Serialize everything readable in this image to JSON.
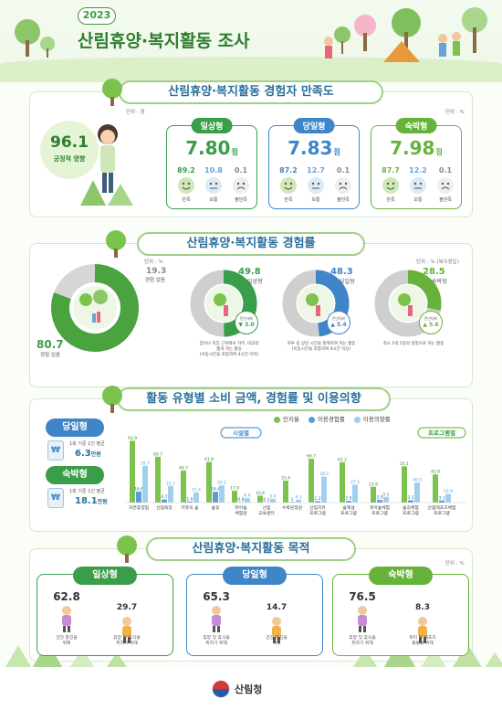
{
  "header": {
    "year": "2023",
    "title": "산림휴양·복지활동 조사"
  },
  "satisfaction": {
    "section_title": "산림휴양·복지활동 경험자 만족도",
    "unit_left": "단위 : 점",
    "unit_right": "단위 : %",
    "positive_effect": {
      "value": "96.1",
      "label": "긍정적 영향"
    },
    "cards": [
      {
        "tag": "일상형",
        "score": "7.80",
        "unit": "점",
        "values": [
          "89.2",
          "10.8",
          "0.1"
        ],
        "labels": [
          "만족",
          "보통",
          "불만족"
        ],
        "color": "#3a9d4a"
      },
      {
        "tag": "당일형",
        "score": "7.83",
        "unit": "점",
        "values": [
          "87.2",
          "12.7",
          "0.1"
        ],
        "labels": [
          "만족",
          "보통",
          "불만족"
        ],
        "color": "#3f86c8"
      },
      {
        "tag": "숙박형",
        "score": "7.98",
        "unit": "점",
        "values": [
          "87.7",
          "12.2",
          "0.1"
        ],
        "labels": [
          "만족",
          "보통",
          "불만족"
        ],
        "color": "#67b33a"
      }
    ]
  },
  "experience": {
    "section_title": "산림휴양·복지활동 경험률",
    "unit": "단위 : % (복수응답)",
    "unit_small": "단위 : %",
    "main": {
      "yes_value": "80.7",
      "yes_label": "경험 있음",
      "no_value": "19.3",
      "no_label": "경험 없음"
    },
    "types": [
      {
        "value": "49.8",
        "label": "일상형",
        "change_label": "전년대비",
        "change": "▼ 3.0",
        "desc": "집이나 직장 근처에서 자주, 비교적\n짧게 하는 활동\n(이동시간을 포함하여 4시간 이하)",
        "color": "#3a9d4a"
      },
      {
        "value": "48.3",
        "label": "당일형",
        "change_label": "전년대비",
        "change": "▲ 5.4",
        "desc": "하루 중 상당 시간을 할애하여 하는 활동\n(이동시간을 포함하여 4시간 이상)",
        "color": "#3f86c8"
      },
      {
        "value": "28.5",
        "label": "숙박형",
        "change_label": "전년대비",
        "change": "▲ 5.6",
        "desc": "최소 1박 2일의 일정으로 하는 활동",
        "color": "#67b33a"
      }
    ]
  },
  "chart_data": {
    "type": "bar",
    "title": "활동 유형별 소비 금액, 경험률 및 이용의향",
    "series": [
      {
        "name": "인지율",
        "color": "#7cc34e",
        "values": [
          93.9,
          69.7,
          48.7,
          61.8,
          17.9,
          10.6,
          33.4,
          66.7,
          61.2,
          23.9,
          55.1,
          42.8
        ]
      },
      {
        "name": "이용경험률",
        "color": "#5a9bd5",
        "values": [
          16.6,
          4.7,
          1.6,
          16.4,
          0.8,
          0.2,
          1.0,
          2.2,
          2.6,
          3.9,
          3.5,
          3.1
        ]
      },
      {
        "name": "이용의향률",
        "color": "#9fd0ef",
        "values": [
          55.7,
          25.2,
          15.4,
          26.1,
          6.6,
          5.6,
          4.3,
          39.5,
          27.3,
          8.6,
          30.5,
          12.9
        ]
      }
    ],
    "categories": [
      "자연휴양림",
      "산림욕장",
      "치유의 숲",
      "숲길",
      "유아숲\n체험원",
      "산림\n교육센터",
      "수목원정원",
      "산림치유\n프로그램",
      "숲해설\n프로그램",
      "유아숲체험\n프로그램",
      "숲길체험\n프로그램",
      "산림레포츠체험\n프로그램"
    ],
    "groups": [
      {
        "label": "시설별",
        "count": 7
      },
      {
        "label": "프로그램별",
        "count": 5
      }
    ],
    "ylim": [
      0,
      100
    ]
  },
  "spending": [
    {
      "tag": "당일형",
      "line1": "1회 기준 1인 평균",
      "value": "6.3",
      "unit": "만원"
    },
    {
      "tag": "숙박형",
      "line1": "1회 기준 1인 평균",
      "value": "18.1",
      "unit": "만원"
    }
  ],
  "purpose": {
    "section_title": "산림휴양·복지활동 목적",
    "unit": "단위 : %",
    "cards": [
      {
        "tag": "일상형",
        "color": "#3a9d4a",
        "items": [
          {
            "value": "62.8",
            "label": "건강 증진을\n위해"
          },
          {
            "value": "29.7",
            "label": "휴양 및 휴식을\n취하기 위해"
          }
        ]
      },
      {
        "tag": "당일형",
        "color": "#3f86c8",
        "items": [
          {
            "value": "65.3",
            "label": "휴양 및 휴식을\n취하기 위해"
          },
          {
            "value": "14.7",
            "label": "건강 증진을\n위해"
          }
        ]
      },
      {
        "tag": "숙박형",
        "color": "#67b33a",
        "items": [
          {
            "value": "76.5",
            "label": "휴양 및 휴식을\n취하기 위해"
          },
          {
            "value": "8.3",
            "label": "취미 및 레포츠\n활동을 위해"
          }
        ]
      }
    ]
  },
  "footer": {
    "org": "산림청"
  }
}
